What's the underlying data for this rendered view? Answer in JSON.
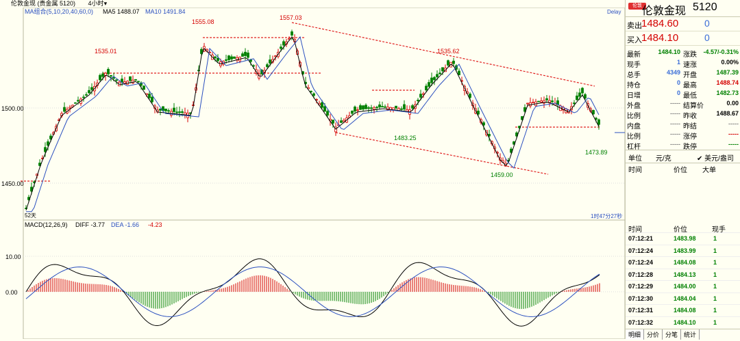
{
  "title": {
    "name": "伦敦金现 (贵金属 5120)",
    "period": "4小时",
    "period_arrow": "▾"
  },
  "main_chart": {
    "ma_label": "MA组合(5,10,20,40,60,0)",
    "ma5": "MA5 1488.07",
    "ma10": "MA10 1491.84",
    "delay": "Delay",
    "y_ticks": [
      "1500.00",
      "1450.00"
    ],
    "annotations": [
      "1535.01",
      "1555.08",
      "1557.03",
      "1535.62",
      "1483.25",
      "1459.00",
      "1473.89"
    ],
    "range_label": "52天",
    "time_left": "1时47分27秒"
  },
  "macd": {
    "label": "MACD(12,26,9)",
    "diff": "DIFF -3.77",
    "dea": "DEA -1.66",
    "macd_val": "-4.23",
    "y_ticks": [
      "10.00",
      "0.00"
    ]
  },
  "panel": {
    "badge": "伦敦",
    "name": "伦敦金现",
    "code": "5120",
    "sell_label": "卖出",
    "sell_price": "1484.60",
    "sell_vol": "0",
    "buy_label": "买入",
    "buy_price": "1484.10",
    "buy_vol": "0",
    "stats": [
      {
        "l1": "最新",
        "v1": "1484.10",
        "c1": "#008000",
        "l2": "涨跌",
        "v2": "-4.57/-0.31%",
        "c2": "#008000"
      },
      {
        "l1": "现手",
        "v1": "1",
        "c1": "#3a6dd8",
        "l2": "速涨",
        "v2": "0.00%",
        "c2": "#000"
      },
      {
        "l1": "总手",
        "v1": "4349",
        "c1": "#3a6dd8",
        "l2": "开盘",
        "v2": "1487.39",
        "c2": "#008000"
      },
      {
        "l1": "持仓",
        "v1": "0",
        "c1": "#3a6dd8",
        "l2": "最高",
        "v2": "1488.74",
        "c2": "#d40000"
      },
      {
        "l1": "日增",
        "v1": "0",
        "c1": "#3a6dd8",
        "l2": "最低",
        "v2": "1482.73",
        "c2": "#008000"
      },
      {
        "l1": "外盘",
        "v1": "-----",
        "c1": "#888",
        "l2": "结算价",
        "v2": "0.00",
        "c2": "#000"
      },
      {
        "l1": "比例",
        "v1": "-----",
        "c1": "#888",
        "l2": "昨收",
        "v2": "1488.67",
        "c2": "#000"
      },
      {
        "l1": "内盘",
        "v1": "-----",
        "c1": "#888",
        "l2": "昨结",
        "v2": "-----",
        "c2": "#888"
      },
      {
        "l1": "比例",
        "v1": "-----",
        "c1": "#888",
        "l2": "涨停",
        "v2": "-----",
        "c2": "#d40000"
      },
      {
        "l1": "杠杆",
        "v1": "-----",
        "c1": "#888",
        "l2": "跌停",
        "v2": "-----",
        "c2": "#008000"
      }
    ],
    "unit_label": "单位",
    "unit_value": "元/克",
    "unit_option": "美元/盎司",
    "ticks_header": [
      "时间",
      "价位",
      "大单"
    ],
    "trades_header": [
      "时间",
      "价位",
      "现手"
    ],
    "trades": [
      {
        "time": "07:12:21",
        "price": "1483.98",
        "qty": "1"
      },
      {
        "time": "07:12:24",
        "price": "1483.99",
        "qty": "1"
      },
      {
        "time": "07:12:24",
        "price": "1484.08",
        "qty": "1"
      },
      {
        "time": "07:12:28",
        "price": "1484.13",
        "qty": "1"
      },
      {
        "time": "07:12:29",
        "price": "1484.00",
        "qty": "1"
      },
      {
        "time": "07:12:30",
        "price": "1484.04",
        "qty": "1"
      },
      {
        "time": "07:12:31",
        "price": "1484.08",
        "qty": "1"
      },
      {
        "time": "07:12:32",
        "price": "1484.10",
        "qty": "1"
      }
    ],
    "tabs": [
      "明细",
      "分价",
      "分笔",
      "统计"
    ]
  }
}
